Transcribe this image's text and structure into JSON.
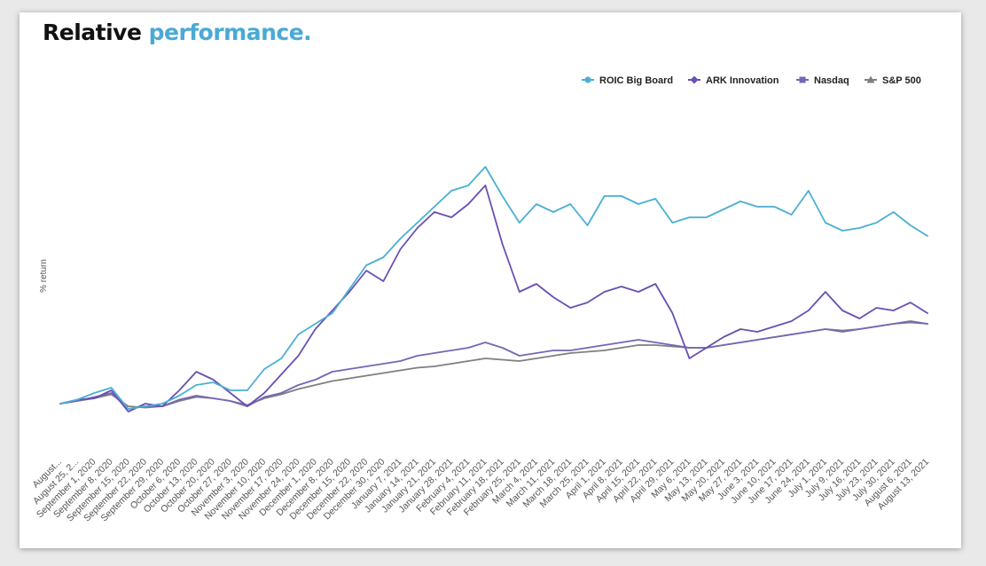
{
  "header": {
    "title_main": "Relative ",
    "title_accent": "performance."
  },
  "colors": {
    "accent": "#4aa9d6",
    "roic": "#4aafd4",
    "ark": "#6a4fb3",
    "nasdaq": "#7766b4",
    "sp500": "#7f7f7f"
  },
  "chart_data": {
    "type": "line",
    "title": "Relative performance.",
    "xlabel": "",
    "ylabel": "% return",
    "legend_position": "top-right",
    "grid": false,
    "y_tick_labels_shown": false,
    "ylim": [
      -25,
      100
    ],
    "categories": [
      "August...",
      "August 25, 2...",
      "September 1, 2020",
      "September 8, 2020",
      "September 15, 2020",
      "September 22, 2020",
      "September 29, 2020",
      "October 6, 2020",
      "October 13, 2020",
      "October 20, 2020",
      "October 27, 2020",
      "November 3, 2020",
      "November 10, 2020",
      "November 17, 2020",
      "November 24, 2020",
      "December 1, 2020",
      "December 8, 2020",
      "December 15, 2020",
      "December 22, 2020",
      "December 30, 2020",
      "January 7, 2021",
      "January 14, 2021",
      "January 21, 2021",
      "January 28, 2021",
      "February 4, 2021",
      "February 11, 2021",
      "February 18, 2021",
      "February 25, 2021",
      "March 4, 2021",
      "March 11, 2021",
      "March 18, 2021",
      "March 25, 2021",
      "April 1, 2021",
      "April 8, 2021",
      "April 15, 2021",
      "April 22, 2021",
      "April 29, 2021",
      "May 6, 2021",
      "May 13, 2021",
      "May 20, 2021",
      "May 27, 2021",
      "June 3, 2021",
      "June 10, 2021",
      "June 17, 2021",
      "June 24, 2021",
      "July 1, 2021",
      "July 9, 2021",
      "July 16, 2021",
      "July 23, 2021",
      "July 30, 2021",
      "August 6, 2021",
      "August 13, 2021"
    ],
    "series": [
      {
        "name": "ROIC Big Board",
        "marker": "circle",
        "values": [
          0,
          1.5,
          4,
          6,
          -2,
          -1,
          0,
          3,
          7,
          8,
          5,
          5,
          13,
          17,
          26,
          30,
          34,
          43,
          52,
          55,
          62,
          68,
          74,
          80,
          82,
          89,
          78,
          68,
          75,
          72,
          75,
          67,
          78,
          78,
          75,
          77,
          68,
          70,
          70,
          73,
          76,
          74,
          74,
          71,
          80,
          68,
          65,
          66,
          68,
          72,
          67,
          63
        ]
      },
      {
        "name": "ARK Innovation",
        "marker": "diamond",
        "values": [
          0,
          1.5,
          2,
          5,
          -3,
          0,
          -1,
          5,
          12,
          9,
          4,
          -1,
          4,
          11,
          18,
          28,
          35,
          42,
          50,
          46,
          58,
          66,
          72,
          70,
          75,
          82,
          60,
          42,
          45,
          40,
          36,
          38,
          42,
          44,
          42,
          45,
          34,
          17,
          21,
          25,
          28,
          27,
          29,
          31,
          35,
          42,
          35,
          32,
          36,
          35,
          38,
          34
        ]
      },
      {
        "name": "Nasdaq",
        "marker": "square",
        "values": [
          0,
          1,
          2.5,
          4,
          -2,
          -1,
          -1,
          1.5,
          3,
          2,
          1,
          -1,
          2.5,
          4,
          7,
          9,
          12,
          13,
          14,
          15,
          16,
          18,
          19,
          20,
          21,
          23,
          21,
          18,
          19,
          20,
          20,
          21,
          22,
          23,
          24,
          23,
          22,
          21,
          21,
          22,
          23,
          24,
          25,
          26,
          27,
          28,
          27,
          28,
          29,
          30,
          31,
          30
        ]
      },
      {
        "name": "S&P 500",
        "marker": "triangle",
        "values": [
          0,
          1,
          2,
          3.5,
          -1,
          -1.5,
          -1,
          1,
          2.5,
          2,
          1,
          -0.5,
          2,
          3.5,
          5.5,
          7,
          8.5,
          9.5,
          10.5,
          11.5,
          12.5,
          13.5,
          14,
          15,
          16,
          17,
          16.5,
          16,
          17,
          18,
          19,
          19.5,
          20,
          21,
          22,
          22,
          21.5,
          21,
          21,
          22,
          23,
          24,
          25,
          26,
          27,
          28,
          27.5,
          28,
          29,
          30,
          30.5,
          30
        ]
      }
    ]
  }
}
